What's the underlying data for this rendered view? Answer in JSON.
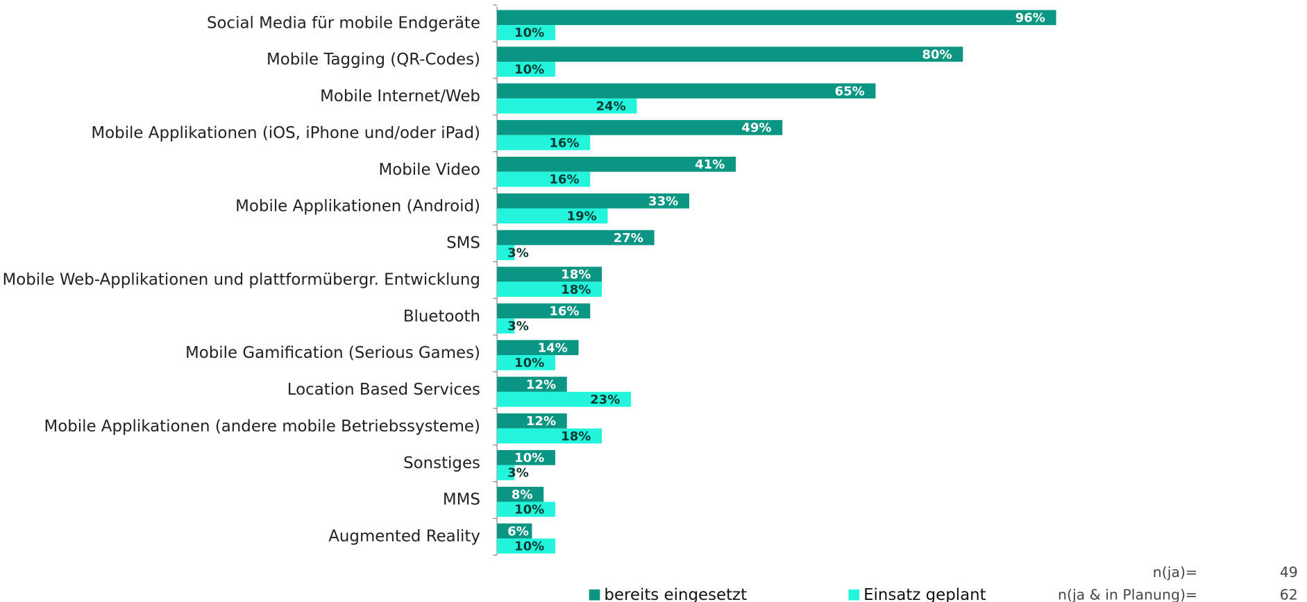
{
  "chart_data": {
    "type": "bar",
    "orientation": "horizontal",
    "categories": [
      "Social Media für mobile Endgeräte",
      "Mobile Tagging (QR-Codes)",
      "Mobile Internet/Web",
      "Mobile Applikationen (iOS, iPhone und/oder iPad)",
      "Mobile Video",
      "Mobile Applikationen (Android)",
      "SMS",
      "Mobile Web-Applikationen und plattformübergr. Entwicklung",
      "Bluetooth",
      "Mobile Gamification (Serious Games)",
      "Location Based Services",
      "Mobile Applikationen (andere mobile Betriebssysteme)",
      "Sonstiges",
      "MMS",
      "Augmented Reality"
    ],
    "xlim": [
      0,
      100
    ],
    "series": [
      {
        "name": "bereits eingesetzt",
        "color": "#0a9682",
        "values": [
          96,
          80,
          65,
          49,
          41,
          33,
          27,
          18,
          16,
          14,
          12,
          12,
          10,
          8,
          6
        ],
        "value_labels": [
          "96%",
          "80%",
          "65%",
          "49%",
          "41%",
          "33%",
          "27%",
          "18%",
          "16%",
          "14%",
          "12%",
          "12%",
          "10%",
          "8%",
          "6%"
        ]
      },
      {
        "name": "Einsatz geplant",
        "color": "#22f5dc",
        "values": [
          10,
          10,
          24,
          16,
          16,
          19,
          3,
          18,
          3,
          10,
          23,
          18,
          3,
          10,
          10
        ],
        "value_labels": [
          "10%",
          "10%",
          "24%",
          "16%",
          "16%",
          "19%",
          "3%",
          "18%",
          "3%",
          "10%",
          "23%",
          "18%",
          "3%",
          "10%",
          "10%"
        ]
      }
    ],
    "notes": [
      {
        "label": "n(ja)=",
        "value": 49
      },
      {
        "label": "n(ja & in Planung)=",
        "value": 62
      }
    ]
  }
}
